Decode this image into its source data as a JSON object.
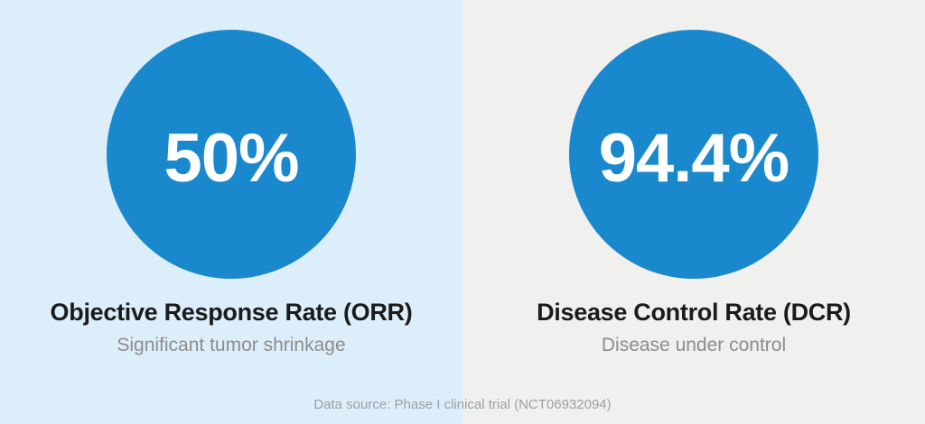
{
  "chart_data": {
    "type": "pie",
    "subtype": "kpi-circles",
    "categories": [
      "Objective Response Rate (ORR)",
      "Disease Control Rate (DCR)"
    ],
    "values": [
      50,
      94.4
    ],
    "value_labels": [
      "50%",
      "94.4%"
    ],
    "annotations": [
      "Significant tumor shrinkage",
      "Disease under control"
    ],
    "title": "",
    "source": "Data source: Phase I clinical trial (NCT06932094)",
    "legend": "none",
    "grid": false
  },
  "panels": [
    {
      "value": "50%",
      "title": "Objective Response Rate (ORR)",
      "subtitle": "Significant tumor shrinkage"
    },
    {
      "value": "94.4%",
      "title": "Disease Control Rate (DCR)",
      "subtitle": "Disease under control"
    }
  ],
  "footer": {
    "text": "Data source: Phase I clinical trial (NCT06932094)"
  },
  "colors": {
    "circle_blue": "#1a88cd",
    "value_text": "#ffffff",
    "left_background": "#ddeefb",
    "right_background": "#f0f0ee",
    "title_text": "#1b1b1b",
    "subtitle_text": "#8c8c8c",
    "footer_text": "#9aa0a6"
  }
}
